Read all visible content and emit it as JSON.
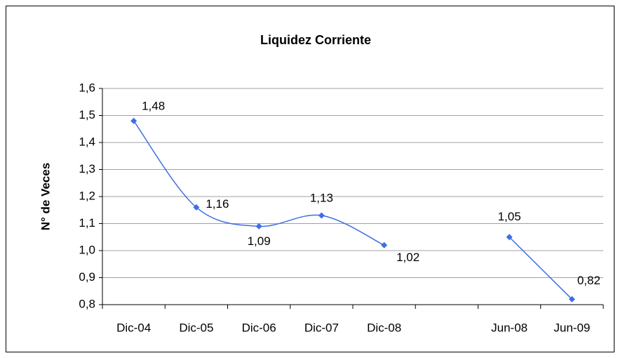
{
  "chart_data": {
    "type": "line",
    "title": "Liquidez Corriente",
    "y_label": "N° de Veces",
    "categories": [
      "Dic-04",
      "Dic-05",
      "Dic-06",
      "Dic-07",
      "Dic-08",
      null,
      "Jun-08",
      "Jun-09"
    ],
    "series": [
      {
        "name": "Liquidez Corriente",
        "color": "#3c6ee6",
        "values": [
          1.48,
          1.16,
          1.09,
          1.13,
          1.02,
          null,
          1.05,
          0.82
        ],
        "value_labels": [
          "1,48",
          "1,16",
          "1,09",
          "1,13",
          "1,02",
          null,
          "1,05",
          "0,82"
        ]
      }
    ],
    "ylim": [
      0.8,
      1.6
    ],
    "yticks": [
      {
        "value": 0.8,
        "label": "0,8"
      },
      {
        "value": 0.9,
        "label": "0,9"
      },
      {
        "value": 1.0,
        "label": "1,0"
      },
      {
        "value": 1.1,
        "label": "1,1"
      },
      {
        "value": 1.2,
        "label": "1,2"
      },
      {
        "value": 1.3,
        "label": "1,3"
      },
      {
        "value": 1.4,
        "label": "1,4"
      },
      {
        "value": 1.5,
        "label": "1,5"
      },
      {
        "value": 1.6,
        "label": "1,6"
      }
    ],
    "grid": true,
    "smooth": true
  }
}
